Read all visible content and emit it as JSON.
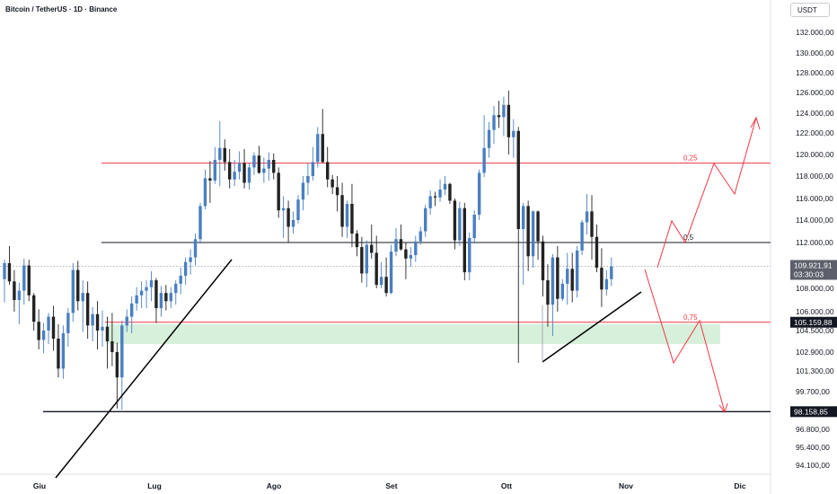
{
  "header": {
    "title": "Bitcoin / TetherUS · 1D · Binance",
    "currency": "USDT"
  },
  "chart_data": {
    "type": "candlestick",
    "y_ticks": [
      "132.000,00",
      "130.000,00",
      "128.000,00",
      "126.000,00",
      "124.000,00",
      "122.000,00",
      "120.000,00",
      "118.000,00",
      "116.000,00",
      "114.000,00",
      "112.000,00",
      "108.000,00",
      "106.000,00",
      "104.500,00",
      "102.900,00",
      "101.300,00",
      "99.700,00",
      "96.800,00",
      "95.400,00",
      "94.100,00"
    ],
    "x_ticks": [
      "Giu",
      "Lug",
      "Ago",
      "Set",
      "Ott",
      "Nov",
      "Dic"
    ],
    "ohlc": [
      [
        108800,
        110500,
        106800,
        110200
      ],
      [
        110200,
        111700,
        108300,
        108600
      ],
      [
        108600,
        109600,
        106000,
        107000
      ],
      [
        107000,
        108500,
        105000,
        107800
      ],
      [
        107800,
        110600,
        106600,
        110000
      ],
      [
        110000,
        110500,
        106900,
        107400
      ],
      [
        107400,
        107600,
        104500,
        105200
      ],
      [
        105200,
        106200,
        103100,
        103800
      ],
      [
        103800,
        105100,
        102800,
        104500
      ],
      [
        104500,
        105900,
        103500,
        105600
      ],
      [
        105600,
        106500,
        103000,
        103900
      ],
      [
        103900,
        105000,
        100800,
        101500
      ],
      [
        101500,
        104900,
        100700,
        104300
      ],
      [
        104300,
        106300,
        103300,
        105900
      ],
      [
        105900,
        110200,
        105200,
        109600
      ],
      [
        109600,
        110400,
        106100,
        106900
      ],
      [
        106900,
        108700,
        104400,
        107600
      ],
      [
        107600,
        108600,
        103900,
        104900
      ],
      [
        104900,
        106400,
        103700,
        105800
      ],
      [
        105800,
        106900,
        103100,
        104500
      ],
      [
        104500,
        106100,
        103300,
        104800
      ],
      [
        104800,
        105600,
        101500,
        103700
      ],
      [
        103700,
        105900,
        101700,
        102900
      ],
      [
        102900,
        103600,
        98400,
        100800
      ],
      [
        100800,
        105300,
        98300,
        104900
      ],
      [
        104900,
        106200,
        104400,
        105600
      ],
      [
        105600,
        107300,
        104300,
        106700
      ],
      [
        106700,
        108100,
        106100,
        107400
      ],
      [
        107400,
        108600,
        106300,
        107800
      ],
      [
        107800,
        108700,
        106300,
        108100
      ],
      [
        108100,
        109500,
        106900,
        108700
      ],
      [
        108700,
        108900,
        105100,
        106300
      ],
      [
        106300,
        108200,
        105600,
        107600
      ],
      [
        107600,
        108300,
        106100,
        106900
      ],
      [
        106900,
        108100,
        106300,
        107600
      ],
      [
        107600,
        108700,
        106600,
        108400
      ],
      [
        108400,
        109800,
        107500,
        109100
      ],
      [
        109100,
        110700,
        108300,
        110300
      ],
      [
        110300,
        111400,
        109200,
        110700
      ],
      [
        110700,
        112800,
        110000,
        112300
      ],
      [
        112300,
        115600,
        111900,
        115300
      ],
      [
        115300,
        118600,
        115000,
        117800
      ],
      [
        117800,
        119400,
        115600,
        117600
      ],
      [
        117600,
        120700,
        117300,
        119500
      ],
      [
        119500,
        123200,
        117100,
        120600
      ],
      [
        120600,
        121400,
        118500,
        119300
      ],
      [
        119300,
        120500,
        116900,
        117700
      ],
      [
        117700,
        119500,
        117100,
        118400
      ],
      [
        118400,
        120300,
        117700,
        119200
      ],
      [
        119200,
        120500,
        116900,
        117400
      ],
      [
        117400,
        119200,
        116800,
        118800
      ],
      [
        118800,
        120200,
        118100,
        119900
      ],
      [
        119900,
        120800,
        118200,
        118300
      ],
      [
        118300,
        119700,
        117400,
        118700
      ],
      [
        118700,
        120200,
        117600,
        119500
      ],
      [
        119500,
        120100,
        117700,
        118300
      ],
      [
        118300,
        118800,
        114200,
        114900
      ],
      [
        114900,
        116200,
        112400,
        115100
      ],
      [
        115100,
        115800,
        112000,
        113400
      ],
      [
        113400,
        114800,
        112800,
        114000
      ],
      [
        114000,
        116300,
        113700,
        115900
      ],
      [
        115900,
        118000,
        114900,
        117400
      ],
      [
        117400,
        119200,
        116300,
        118000
      ],
      [
        118000,
        120700,
        117600,
        119300
      ],
      [
        119300,
        122600,
        118800,
        121900
      ],
      [
        121900,
        124400,
        119200,
        119300
      ],
      [
        119300,
        120700,
        117000,
        117700
      ],
      [
        117700,
        118100,
        116400,
        117000
      ],
      [
        117000,
        118000,
        114800,
        116300
      ],
      [
        116300,
        117400,
        112500,
        113400
      ],
      [
        113400,
        115800,
        112400,
        115500
      ],
      [
        115500,
        117300,
        111600,
        112800
      ],
      [
        112800,
        113100,
        110800,
        111600
      ],
      [
        111600,
        112500,
        108500,
        109300
      ],
      [
        109300,
        112200,
        108100,
        111800
      ],
      [
        111800,
        113600,
        110600,
        111100
      ],
      [
        111100,
        112600,
        108000,
        108300
      ],
      [
        108300,
        110300,
        108000,
        109000
      ],
      [
        109000,
        110700,
        107300,
        107600
      ],
      [
        107600,
        111800,
        107500,
        111200
      ],
      [
        111200,
        113300,
        110800,
        112300
      ],
      [
        112300,
        113600,
        111300,
        111400
      ],
      [
        111400,
        112000,
        108800,
        110600
      ],
      [
        110600,
        111600,
        109900,
        110900
      ],
      [
        110900,
        112600,
        110300,
        112100
      ],
      [
        112100,
        113400,
        111800,
        113000
      ],
      [
        113000,
        115400,
        112500,
        115100
      ],
      [
        115100,
        116700,
        114500,
        116200
      ],
      [
        116200,
        116600,
        115300,
        116100
      ],
      [
        116100,
        117700,
        115700,
        116800
      ],
      [
        116800,
        118000,
        116300,
        117300
      ],
      [
        117300,
        117400,
        115500,
        115800
      ],
      [
        115800,
        116000,
        111400,
        112200
      ],
      [
        112200,
        115700,
        111700,
        115100
      ],
      [
        115100,
        115600,
        108700,
        109400
      ],
      [
        109400,
        112900,
        108700,
        112400
      ],
      [
        112400,
        114900,
        111900,
        114500
      ],
      [
        114500,
        118600,
        114000,
        118300
      ],
      [
        118300,
        123800,
        117900,
        120600
      ],
      [
        120600,
        123100,
        119700,
        122300
      ],
      [
        122300,
        124700,
        121000,
        123800
      ],
      [
        123800,
        125200,
        122500,
        123600
      ],
      [
        123600,
        125600,
        121700,
        124800
      ],
      [
        124800,
        126200,
        120000,
        121600
      ],
      [
        121600,
        123400,
        119700,
        122200
      ],
      [
        122200,
        122600,
        102000,
        113200
      ],
      [
        113200,
        115600,
        108300,
        115300
      ],
      [
        115300,
        115800,
        109500,
        110800
      ],
      [
        110800,
        114900,
        109800,
        114800
      ],
      [
        114800,
        114900,
        110500,
        112100
      ],
      [
        112100,
        112600,
        107300,
        108700
      ],
      [
        108700,
        110100,
        104800,
        106600
      ],
      [
        106600,
        111000,
        104100,
        110700
      ],
      [
        110700,
        111700,
        106000,
        107100
      ],
      [
        107100,
        108800,
        106900,
        108400
      ],
      [
        108400,
        111100,
        106600,
        109700
      ],
      [
        109700,
        111100,
        106800,
        107800
      ],
      [
        107800,
        111700,
        107200,
        111300
      ],
      [
        111300,
        114000,
        110900,
        113800
      ],
      [
        113800,
        116400,
        112700,
        114800
      ],
      [
        114800,
        116300,
        110500,
        112500
      ],
      [
        112500,
        113600,
        109400,
        109800
      ],
      [
        109800,
        111500,
        106400,
        107900
      ],
      [
        107900,
        109600,
        107400,
        108800
      ],
      [
        108800,
        110700,
        108200,
        109900
      ]
    ],
    "levels": [
      {
        "name": "0,25",
        "value": 119200,
        "color": "#f23645"
      },
      {
        "name": "0,5",
        "value": 112000,
        "color": "#131722"
      },
      {
        "name": "0,75",
        "value": 105159.88,
        "color": "#f23645"
      }
    ],
    "price_tags": [
      {
        "value": 109921.91,
        "label": "109.921,91",
        "sub": "03:30:03"
      },
      {
        "value": 105159.88,
        "label": "105.159,88"
      },
      {
        "value": 98158.85,
        "label": "98.158,85"
      }
    ],
    "support_zone": [
      103500,
      105000
    ]
  }
}
